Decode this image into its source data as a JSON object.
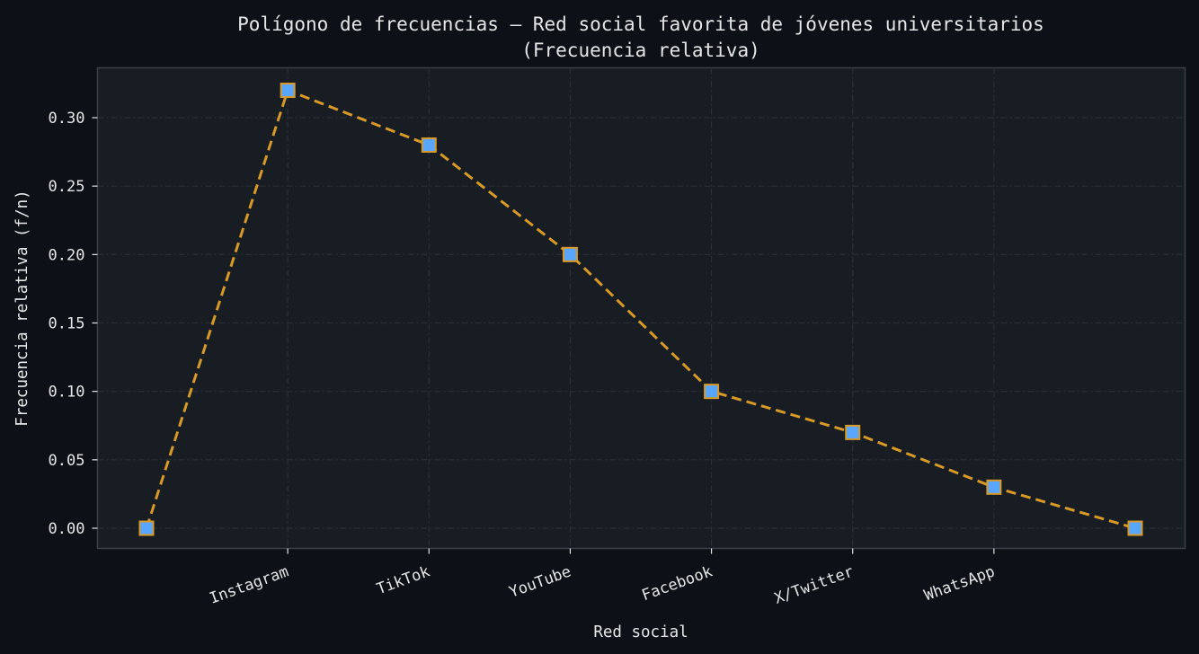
{
  "chart_data": {
    "type": "line",
    "title": "Polígono de frecuencias — Red social favorita de jóvenes universitarios",
    "subtitle": "(Frecuencia relativa)",
    "xlabel": "Red social",
    "ylabel": "Frecuencia relativa (f/n)",
    "categories": [
      "",
      "Instagram",
      "TikTok",
      "YouTube",
      "Facebook",
      "X/Twitter",
      "WhatsApp",
      ""
    ],
    "tick_categories": [
      "Instagram",
      "TikTok",
      "YouTube",
      "Facebook",
      "X/Twitter",
      "WhatsApp"
    ],
    "series": [
      {
        "name": "Frecuencia relativa",
        "values": [
          0.0,
          0.32,
          0.28,
          0.2,
          0.1,
          0.07,
          0.03,
          0.0
        ]
      }
    ],
    "yticks": [
      "0.00",
      "0.05",
      "0.10",
      "0.15",
      "0.20",
      "0.25",
      "0.30"
    ],
    "ylim": [
      -0.015,
      0.337
    ],
    "grid": true,
    "legend": "none",
    "colors": {
      "background": "#0d1117",
      "plot_background": "#181c23",
      "line": "#d89a27",
      "marker_fill": "#58a6ff",
      "marker_edge": "#d89a27",
      "grid": "#2a2f38",
      "spine": "#3a3f48",
      "text": "#e6e6e6"
    }
  }
}
